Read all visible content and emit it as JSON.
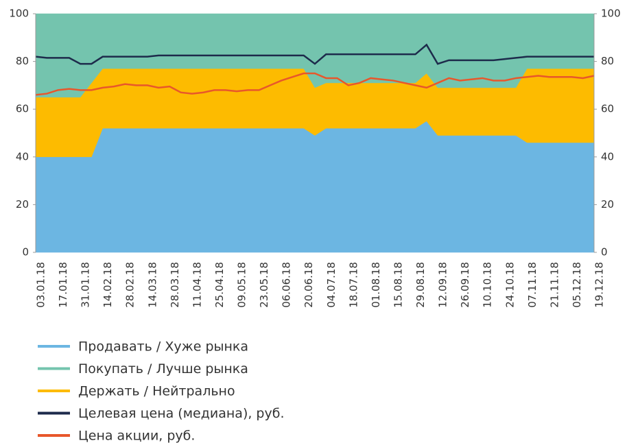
{
  "chart_data": {
    "type": "stacked_area_line",
    "categories": [
      "03.01.18",
      null,
      "17.01.18",
      null,
      "31.01.18",
      null,
      "14.02.18",
      null,
      "28.02.18",
      null,
      "14.03.18",
      null,
      "28.03.18",
      null,
      "11.04.18",
      null,
      "25.04.18",
      null,
      "09.05.18",
      null,
      "23.05.18",
      null,
      "06.06.18",
      null,
      "20.06.18",
      null,
      "04.07.18",
      null,
      "18.07.18",
      null,
      "01.08.18",
      null,
      "15.08.18",
      null,
      "29.08.18",
      null,
      "12.09.18",
      null,
      "26.09.18",
      null,
      "10.10.18",
      null,
      "24.10.18",
      null,
      "07.11.18",
      null,
      "21.11.18",
      null,
      "05.12.18",
      null,
      "19.12.18"
    ],
    "series": [
      {
        "name": "Продавать / Хуже рынка",
        "color": "#6cb6e2",
        "stack": true,
        "values": [
          40,
          40,
          40,
          40,
          40,
          40,
          52,
          52,
          52,
          52,
          52,
          52,
          52,
          52,
          52,
          52,
          52,
          52,
          52,
          52,
          52,
          52,
          52,
          52,
          52,
          49,
          52,
          52,
          52,
          52,
          52,
          52,
          52,
          52,
          52,
          55,
          49,
          49,
          49,
          49,
          49,
          49,
          49,
          49,
          46,
          46,
          46,
          46,
          46,
          46,
          46
        ]
      },
      {
        "name": "Покупать / Лучше рынка",
        "color": "#74c4ae",
        "stack": true,
        "order": 2,
        "values": [
          35,
          35,
          35,
          35,
          35,
          29,
          23,
          23,
          23,
          23,
          23,
          23,
          23,
          23,
          23,
          23,
          23,
          23,
          23,
          23,
          23,
          23,
          23,
          23,
          23,
          31,
          29,
          29,
          29,
          29,
          29,
          29,
          29,
          29,
          29,
          25,
          31,
          31,
          31,
          31,
          31,
          31,
          31,
          31,
          23,
          23,
          23,
          23,
          23,
          23,
          23
        ]
      },
      {
        "name": "Держать / Нейтрально",
        "color": "#fdbb00",
        "stack": true,
        "order": 1,
        "values": [
          25,
          25,
          25,
          25,
          25,
          31,
          25,
          25,
          25,
          25,
          25,
          25,
          25,
          25,
          25,
          25,
          25,
          25,
          25,
          25,
          25,
          25,
          25,
          25,
          25,
          20,
          19,
          19,
          19,
          19,
          19,
          19,
          19,
          19,
          19,
          20,
          20,
          20,
          20,
          20,
          20,
          20,
          20,
          20,
          31,
          31,
          31,
          31,
          31,
          31,
          31
        ]
      },
      {
        "name": "Целевая цена (медиана), руб.",
        "color": "#1d2b4b",
        "axis": "y2",
        "values": [
          82,
          81.5,
          81.5,
          81.5,
          79,
          79,
          82,
          82,
          82,
          82,
          82,
          82.5,
          82.5,
          82.5,
          82.5,
          82.5,
          82.5,
          82.5,
          82.5,
          82.5,
          82.5,
          82.5,
          82.5,
          82.5,
          82.5,
          79,
          83,
          83,
          83,
          83,
          83,
          83,
          83,
          83,
          83,
          87,
          79,
          80.5,
          80.5,
          80.5,
          80.5,
          80.5,
          81,
          81.5,
          82,
          82,
          82,
          82,
          82,
          82,
          82
        ]
      },
      {
        "name": "Цена акции, руб.",
        "color": "#e8572b",
        "axis": "y2",
        "values": [
          66,
          66.5,
          68,
          68.5,
          68,
          68,
          69,
          69.5,
          70.5,
          70,
          70,
          69,
          69.5,
          67,
          66.5,
          67,
          68,
          68,
          67.5,
          68,
          68,
          70,
          72,
          73.5,
          75,
          75,
          73,
          73,
          70,
          71,
          73,
          72.5,
          72,
          71,
          70,
          69,
          71,
          73,
          72,
          72.5,
          73,
          72,
          72,
          73,
          73.5,
          74,
          73.5,
          73.5,
          73.5,
          73,
          74
        ]
      }
    ],
    "ylim": [
      0,
      100
    ],
    "yticks": [
      0,
      20,
      40,
      60,
      80,
      100
    ],
    "y2lim": [
      0,
      100
    ],
    "y2ticks": [
      0,
      20,
      40,
      60,
      80,
      100
    ],
    "legend": "bottom"
  }
}
